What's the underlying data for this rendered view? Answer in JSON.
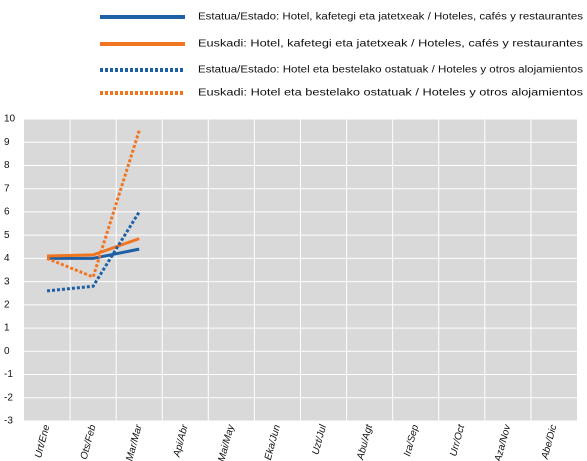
{
  "chart_data": {
    "type": "line",
    "categories": [
      "Urt/Ene",
      "Ots/Feb",
      "Mar/Mar",
      "Api/Abr",
      "Mai/May",
      "Eka/Jun",
      "Uzt/Jul",
      "Abu/Agt",
      "Ira/Sep",
      "Urr/Oct",
      "Aza/Nov",
      "Abe/Dic"
    ],
    "series": [
      {
        "name": "Estatua/Estado: Hotel, kafetegi eta jatetxeak / Hoteles, cafés y restaurantes",
        "color": "#1f5fa6",
        "style": "solid",
        "values": [
          4.0,
          4.0,
          4.4,
          null,
          null,
          null,
          null,
          null,
          null,
          null,
          null,
          null
        ]
      },
      {
        "name": "Euskadi: Hotel, kafetegi eta jatetxeak / Hoteles, cafés y restaurantes",
        "color": "#f07520",
        "style": "solid",
        "values": [
          4.1,
          4.15,
          4.85,
          null,
          null,
          null,
          null,
          null,
          null,
          null,
          null,
          null
        ]
      },
      {
        "name": "Estatua/Estado: Hotel eta bestelako ostatuak / Hoteles y otros alojamientos",
        "color": "#1f5fa6",
        "style": "dotted",
        "values": [
          2.6,
          2.8,
          6.0,
          null,
          null,
          null,
          null,
          null,
          null,
          null,
          null,
          null
        ]
      },
      {
        "name": "Euskadi: Hotel eta bestelako ostatuak / Hoteles y otros alojamientos",
        "color": "#f07520",
        "style": "dotted",
        "values": [
          4.0,
          3.2,
          9.5,
          null,
          null,
          null,
          null,
          null,
          null,
          null,
          null,
          null
        ]
      }
    ],
    "ylim": [
      -3,
      10
    ],
    "yticks": [
      -3,
      -2,
      -1,
      0,
      1,
      2,
      3,
      4,
      5,
      6,
      7,
      8,
      9,
      10
    ],
    "grid": true
  }
}
